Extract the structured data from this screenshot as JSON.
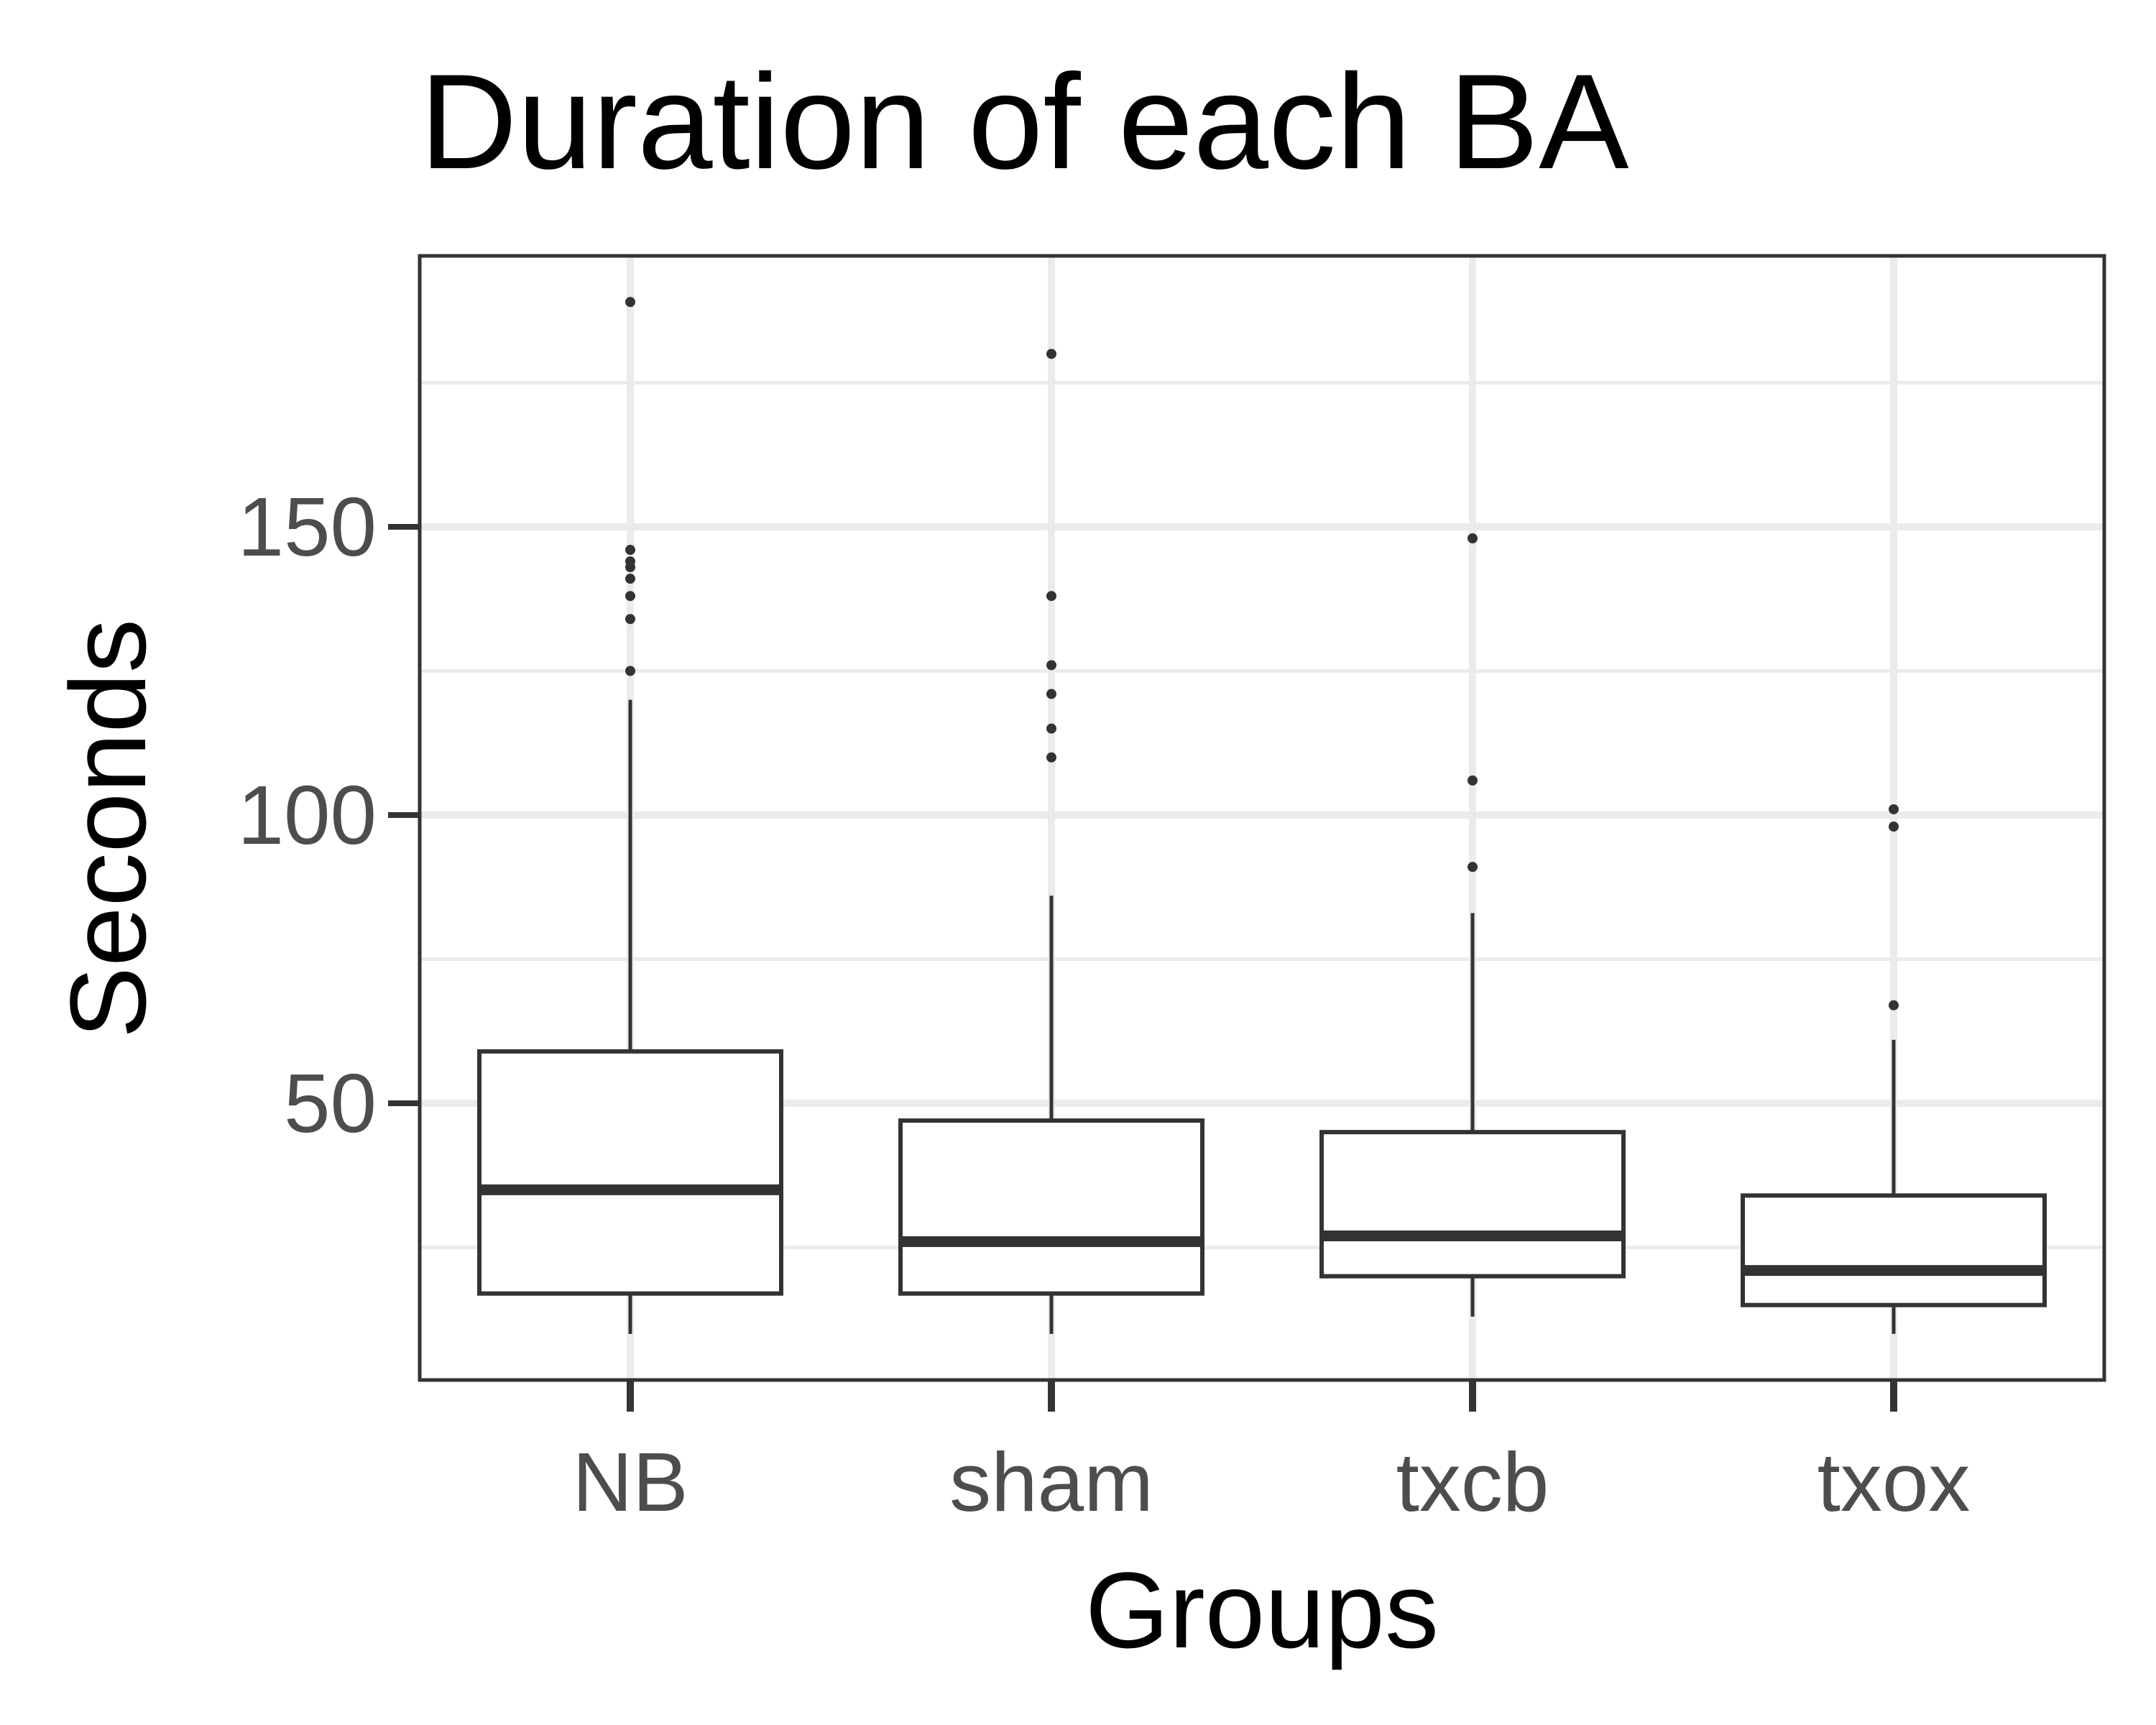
{
  "chart_data": {
    "type": "boxplot",
    "title": "Duration of each BA",
    "xlabel": "Groups",
    "ylabel": "Seconds",
    "ylim": [
      2,
      197
    ],
    "yticks": [
      50,
      100,
      150
    ],
    "grid": true,
    "categories": [
      "NB",
      "sham",
      "txcb",
      "txox"
    ],
    "boxes": [
      {
        "category": "NB",
        "whisker_low": 10,
        "q1": 17,
        "median": 35,
        "q3": 59,
        "whisker_high": 120,
        "outliers": [
          125,
          134,
          138,
          141,
          143,
          144,
          146,
          189
        ]
      },
      {
        "category": "sham",
        "whisker_low": 10,
        "q1": 17,
        "median": 26,
        "q3": 47,
        "whisker_high": 86,
        "outliers": [
          110,
          115,
          121,
          126,
          138,
          180
        ]
      },
      {
        "category": "txcb",
        "whisker_low": 13,
        "q1": 20,
        "median": 27,
        "q3": 45,
        "whisker_high": 83,
        "outliers": [
          91,
          106,
          148
        ]
      },
      {
        "category": "txox",
        "whisker_low": 10,
        "q1": 15,
        "median": 21,
        "q3": 34,
        "whisker_high": 61,
        "outliers": [
          67,
          98,
          101
        ]
      }
    ],
    "colors": {
      "panel_border": "#333333",
      "grid_major": "#ebebeb",
      "grid_minor": "#ebebeb",
      "box_line": "#333333",
      "box_fill": "#ffffff",
      "tick_label": "#4d4d4d"
    }
  }
}
